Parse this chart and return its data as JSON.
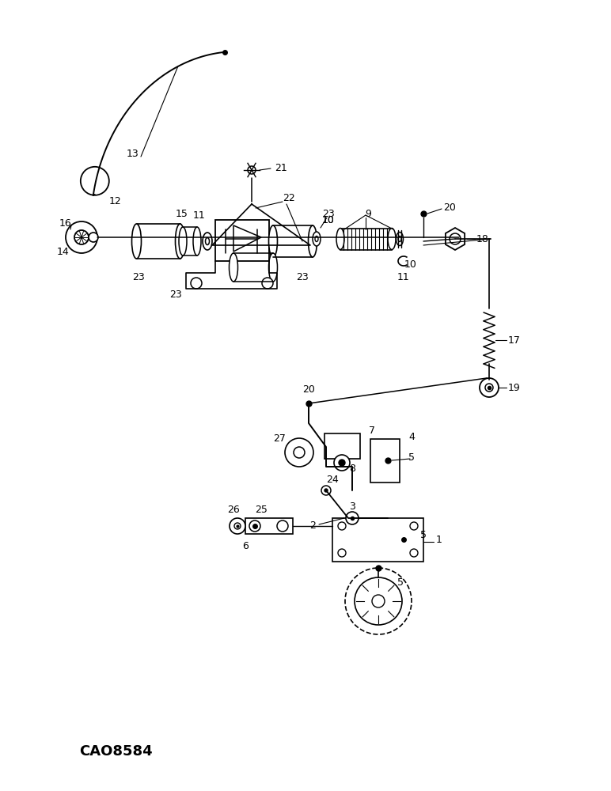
{
  "background_color": "#ffffff",
  "line_color": "#000000",
  "watermark": "CAO8584",
  "fig_width": 7.72,
  "fig_height": 10.0,
  "dpi": 100
}
